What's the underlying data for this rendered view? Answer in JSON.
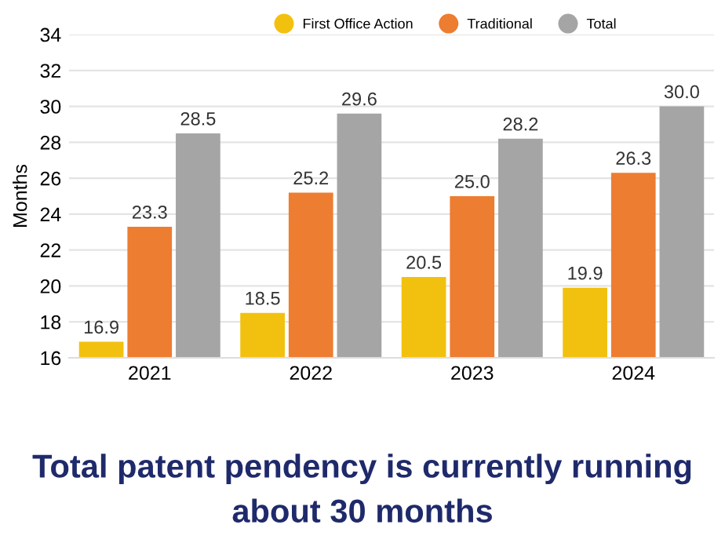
{
  "chart_data": {
    "type": "bar",
    "title": "Total patent pendency is currently running about 30 months",
    "ylabel": "Months",
    "categories": [
      "2021",
      "2022",
      "2023",
      "2024"
    ],
    "series": [
      {
        "name": "First Office Action",
        "color": "#f2c10f",
        "values": [
          16.9,
          18.5,
          20.5,
          19.9
        ],
        "value_labels": [
          "16.9",
          "18.5",
          "20.5",
          "19.9"
        ]
      },
      {
        "name": "Traditional",
        "color": "#ed7d31",
        "values": [
          23.3,
          25.2,
          25.0,
          26.3
        ],
        "value_labels": [
          "23.3",
          "25.2",
          "25.0",
          "26.3"
        ]
      },
      {
        "name": "Total",
        "color": "#a5a5a5",
        "values": [
          28.5,
          29.6,
          28.2,
          30.0
        ],
        "value_labels": [
          "28.5",
          "29.6",
          "28.2",
          "30.0"
        ]
      }
    ],
    "ylim": [
      16,
      34
    ],
    "yticks": [
      16,
      18,
      20,
      22,
      24,
      26,
      28,
      30,
      32,
      34
    ],
    "grid": "y",
    "legend": "top right",
    "marker": "circle"
  }
}
